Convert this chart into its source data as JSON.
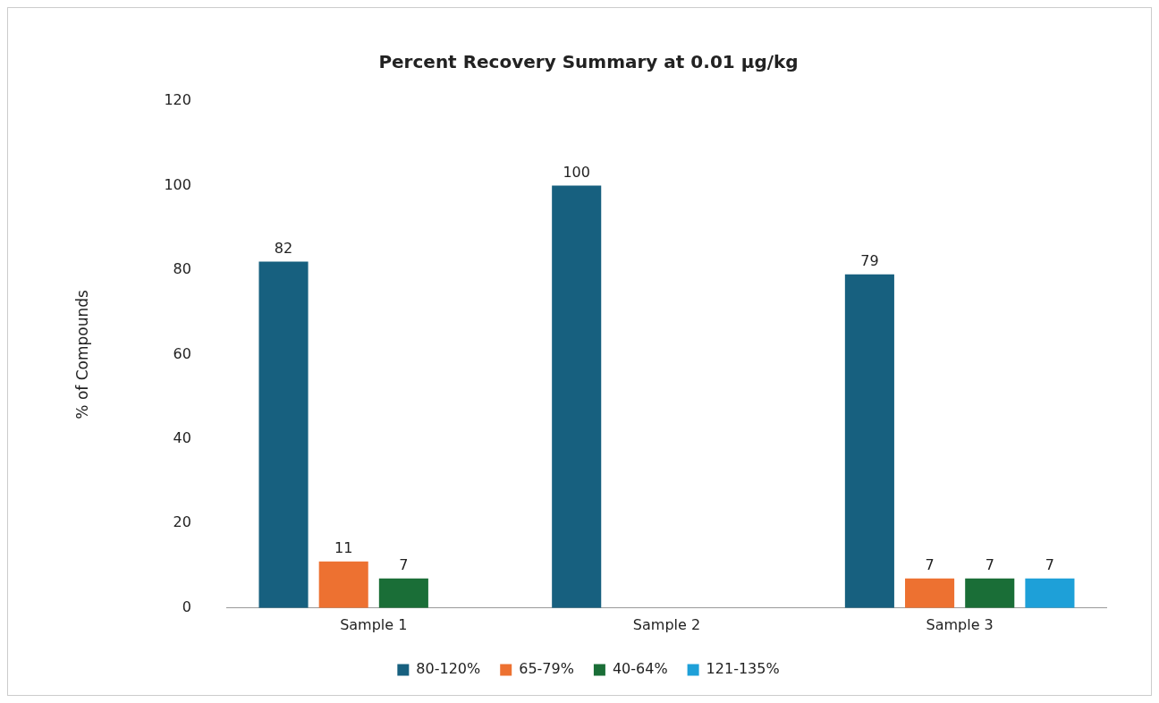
{
  "chart_data": {
    "type": "bar",
    "title": "Percent Recovery Summary at 0.01 µg/kg",
    "ylabel": "% of Compounds",
    "categories": [
      "Sample 1",
      "Sample 2",
      "Sample 3"
    ],
    "series": [
      {
        "name": "80-120%",
        "color": "#17607f",
        "values": [
          82,
          100,
          79
        ]
      },
      {
        "name": "65-79%",
        "color": "#ed7131",
        "values": [
          11,
          null,
          7
        ]
      },
      {
        "name": "40-64%",
        "color": "#1a6e37",
        "values": [
          7,
          null,
          7
        ]
      },
      {
        "name": "121-135%",
        "color": "#1ea0d8",
        "values": [
          null,
          null,
          7
        ]
      }
    ],
    "ylim": [
      0,
      120
    ],
    "yticks": [
      0,
      20,
      40,
      60,
      80,
      100,
      120
    ],
    "data_labels": true,
    "legend": "bottom"
  }
}
